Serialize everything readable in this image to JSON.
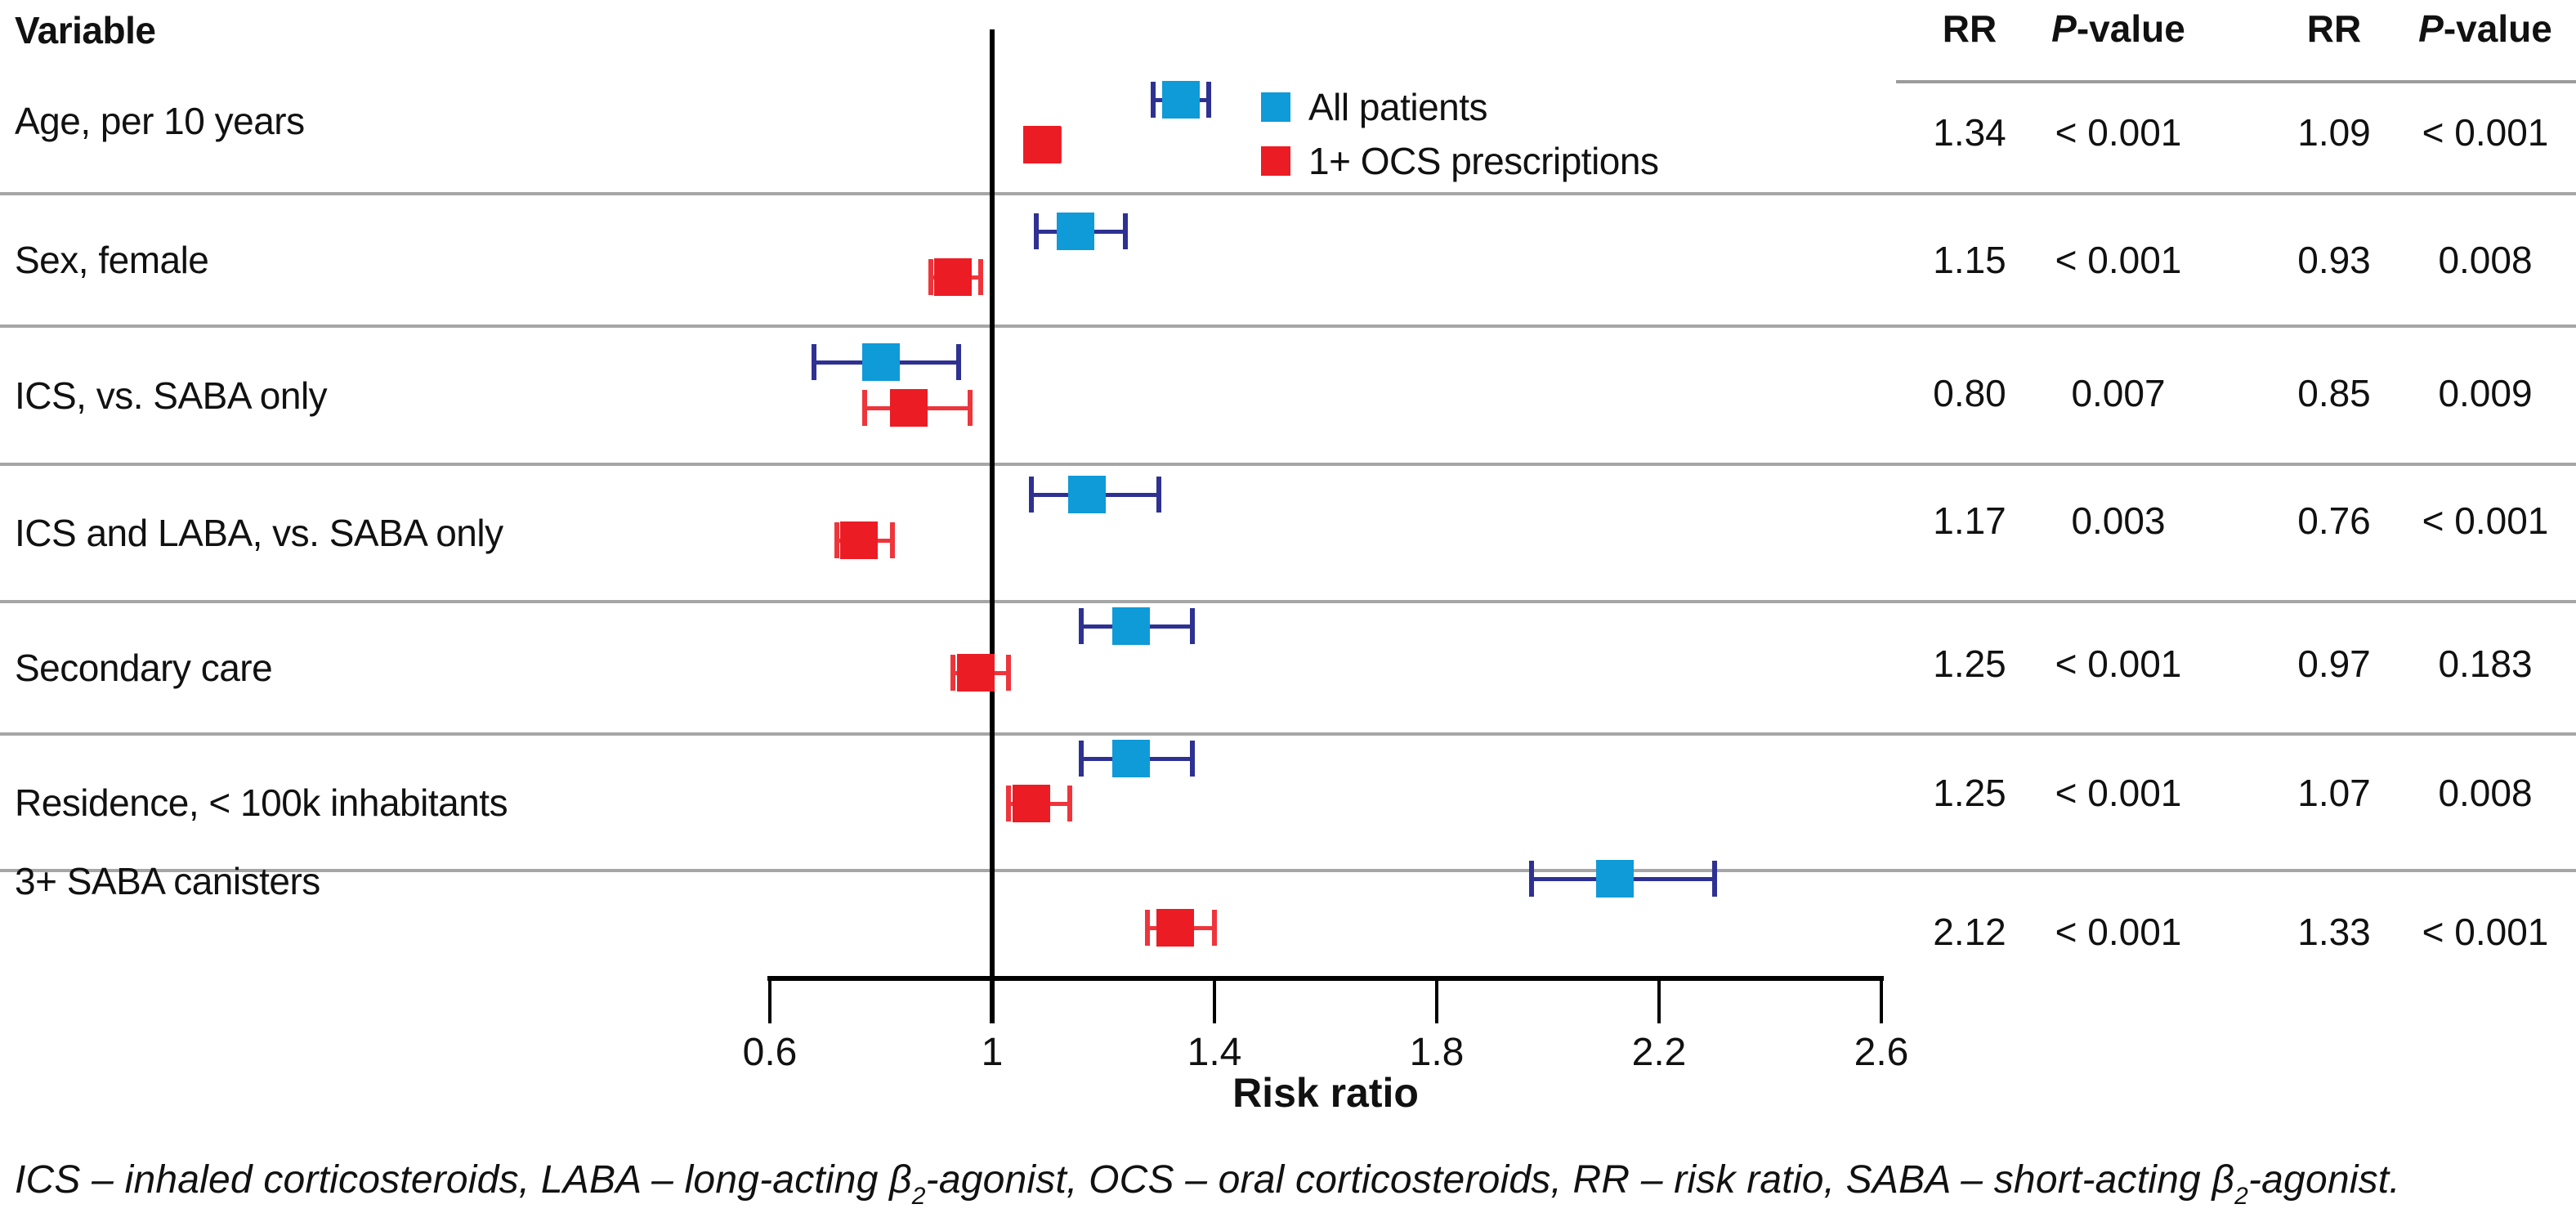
{
  "header": {
    "variable_label": "Variable"
  },
  "table": {
    "column_groups": [
      {
        "rr_label": "RR",
        "p_label_italic": "P",
        "p_label_rest": "-value"
      },
      {
        "rr_label": "RR",
        "p_label_italic": "P",
        "p_label_rest": "-value"
      }
    ]
  },
  "colors": {
    "all_patients_marker": "#0f9ad8",
    "all_patients_whisker": "#2e3192",
    "ocs_marker": "#ec1c24",
    "ocs_whisker": "#ee353b",
    "separator": "#a6a6a6",
    "axis": "#000000"
  },
  "chart_data": {
    "type": "forest",
    "xlabel": "Risk ratio",
    "xlim": [
      0.6,
      2.6
    ],
    "x_ticks": [
      {
        "v": 0.6,
        "label": "0.6"
      },
      {
        "v": 1.0,
        "label": "1"
      },
      {
        "v": 1.4,
        "label": "1.4"
      },
      {
        "v": 1.8,
        "label": "1.8"
      },
      {
        "v": 2.2,
        "label": "2.2"
      },
      {
        "v": 2.6,
        "label": "2.6"
      }
    ],
    "reference_line": 1,
    "grid": false,
    "legend_position": "top-center",
    "series": [
      {
        "name": "All patients",
        "marker_color": "#0f9ad8",
        "whisker_color": "#2e3192"
      },
      {
        "name": "1+ OCS prescriptions",
        "marker_color": "#ec1c24",
        "whisker_color": "#ee353b"
      }
    ],
    "rows": [
      {
        "variable": "Age, per 10 years",
        "all_patients": {
          "rr": 1.34,
          "ci_low": 1.29,
          "ci_high": 1.39,
          "rr_text": "1.34",
          "p_text": "< 0.001"
        },
        "ocs": {
          "rr": 1.09,
          "ci_low": 1.06,
          "ci_high": 1.12,
          "rr_text": "1.09",
          "p_text": "< 0.001"
        }
      },
      {
        "variable": "Sex, female",
        "all_patients": {
          "rr": 1.15,
          "ci_low": 1.08,
          "ci_high": 1.24,
          "rr_text": "1.15",
          "p_text": "< 0.001"
        },
        "ocs": {
          "rr": 0.93,
          "ci_low": 0.89,
          "ci_high": 0.98,
          "rr_text": "0.93",
          "p_text": "0.008"
        }
      },
      {
        "variable": "ICS, vs. SABA only",
        "all_patients": {
          "rr": 0.8,
          "ci_low": 0.68,
          "ci_high": 0.94,
          "rr_text": "0.80",
          "p_text": "0.007"
        },
        "ocs": {
          "rr": 0.85,
          "ci_low": 0.77,
          "ci_high": 0.96,
          "rr_text": "0.85",
          "p_text": "0.009"
        }
      },
      {
        "variable": "ICS and LABA, vs. SABA only",
        "all_patients": {
          "rr": 1.17,
          "ci_low": 1.07,
          "ci_high": 1.3,
          "rr_text": "1.17",
          "p_text": "0.003"
        },
        "ocs": {
          "rr": 0.76,
          "ci_low": 0.72,
          "ci_high": 0.82,
          "rr_text": "0.76",
          "p_text": "< 0.001"
        }
      },
      {
        "variable": "Secondary care",
        "all_patients": {
          "rr": 1.25,
          "ci_low": 1.16,
          "ci_high": 1.36,
          "rr_text": "1.25",
          "p_text": "< 0.001"
        },
        "ocs": {
          "rr": 0.97,
          "ci_low": 0.93,
          "ci_high": 1.03,
          "rr_text": "0.97",
          "p_text": "0.183"
        }
      },
      {
        "variable": "Residence, < 100k inhabitants",
        "all_patients": {
          "rr": 1.25,
          "ci_low": 1.16,
          "ci_high": 1.36,
          "rr_text": "1.25",
          "p_text": "< 0.001"
        },
        "ocs": {
          "rr": 1.07,
          "ci_low": 1.03,
          "ci_high": 1.14,
          "rr_text": "1.07",
          "p_text": "0.008"
        }
      },
      {
        "variable": "3+ SABA canisters",
        "all_patients": {
          "rr": 2.12,
          "ci_low": 1.97,
          "ci_high": 2.3,
          "rr_text": "2.12",
          "p_text": "< 0.001"
        },
        "ocs": {
          "rr": 1.33,
          "ci_low": 1.28,
          "ci_high": 1.4,
          "rr_text": "1.33",
          "p_text": "< 0.001"
        }
      }
    ]
  },
  "footnote": {
    "segments": [
      {
        "text": "ICS – inhaled corticosteroids, LABA – long-acting β"
      },
      {
        "sub": "2"
      },
      {
        "text": "-agonist, OCS – oral corticosteroids, RR – risk ratio, SABA – short-acting β"
      },
      {
        "sub": "2"
      },
      {
        "text": "-agonist."
      }
    ]
  }
}
